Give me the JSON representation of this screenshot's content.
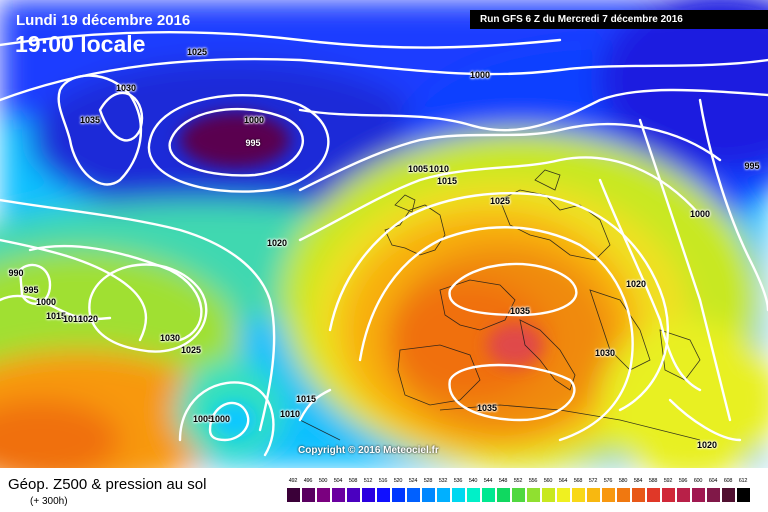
{
  "header": {
    "date": "Lundi 19 décembre 2016",
    "local_time": "19:00 locale",
    "run": "Run GFS 6 Z du Mercredi 7 décembre 2016"
  },
  "copyright": "Copyright © 2016 Meteociel.fr",
  "footer": {
    "product_title": "Géop. Z500 & pression au sol",
    "product_subtitle": "(+ 300h)"
  },
  "isobar_labels": [
    {
      "text": "1025"
    },
    {
      "text": "1030"
    },
    {
      "text": "1035"
    },
    {
      "text": "1000"
    },
    {
      "text": "995"
    },
    {
      "text": "1000"
    },
    {
      "text": "1005"
    },
    {
      "text": "1010"
    },
    {
      "text": "1015"
    },
    {
      "text": "1025"
    },
    {
      "text": "1020"
    },
    {
      "text": "990"
    },
    {
      "text": "995"
    },
    {
      "text": "1000"
    },
    {
      "text": "1015"
    },
    {
      "text": "1010"
    },
    {
      "text": "1020"
    },
    {
      "text": "1030"
    },
    {
      "text": "1025"
    },
    {
      "text": "1035"
    },
    {
      "text": "1020"
    },
    {
      "text": "1030"
    },
    {
      "text": "1000"
    },
    {
      "text": "995"
    },
    {
      "text": "1015"
    },
    {
      "text": "1010"
    },
    {
      "text": "1005"
    },
    {
      "text": "1000"
    },
    {
      "text": "1035"
    },
    {
      "text": "1020"
    }
  ],
  "legend": {
    "values": [
      "492",
      "496",
      "500",
      "504",
      "508",
      "512",
      "516",
      "520",
      "524",
      "528",
      "532",
      "536",
      "540",
      "544",
      "548",
      "552",
      "556",
      "560",
      "564",
      "568",
      "572",
      "576",
      "580",
      "584",
      "588",
      "592",
      "596",
      "600",
      "604",
      "608",
      "612"
    ],
    "colors": [
      "#3a0038",
      "#5a0060",
      "#7a007f",
      "#6a00a0",
      "#4a00c0",
      "#2a00e0",
      "#1010ff",
      "#0038ff",
      "#0060ff",
      "#0088ff",
      "#00b0ff",
      "#00d8f0",
      "#00f0c8",
      "#00e890",
      "#10d860",
      "#50d840",
      "#90e030",
      "#c8e820",
      "#f0f020",
      "#f8d818",
      "#f8b810",
      "#f89810",
      "#f07810",
      "#e85818",
      "#e03828",
      "#d02838",
      "#b82048",
      "#a01850",
      "#801848",
      "#501030",
      "#000000"
    ]
  }
}
